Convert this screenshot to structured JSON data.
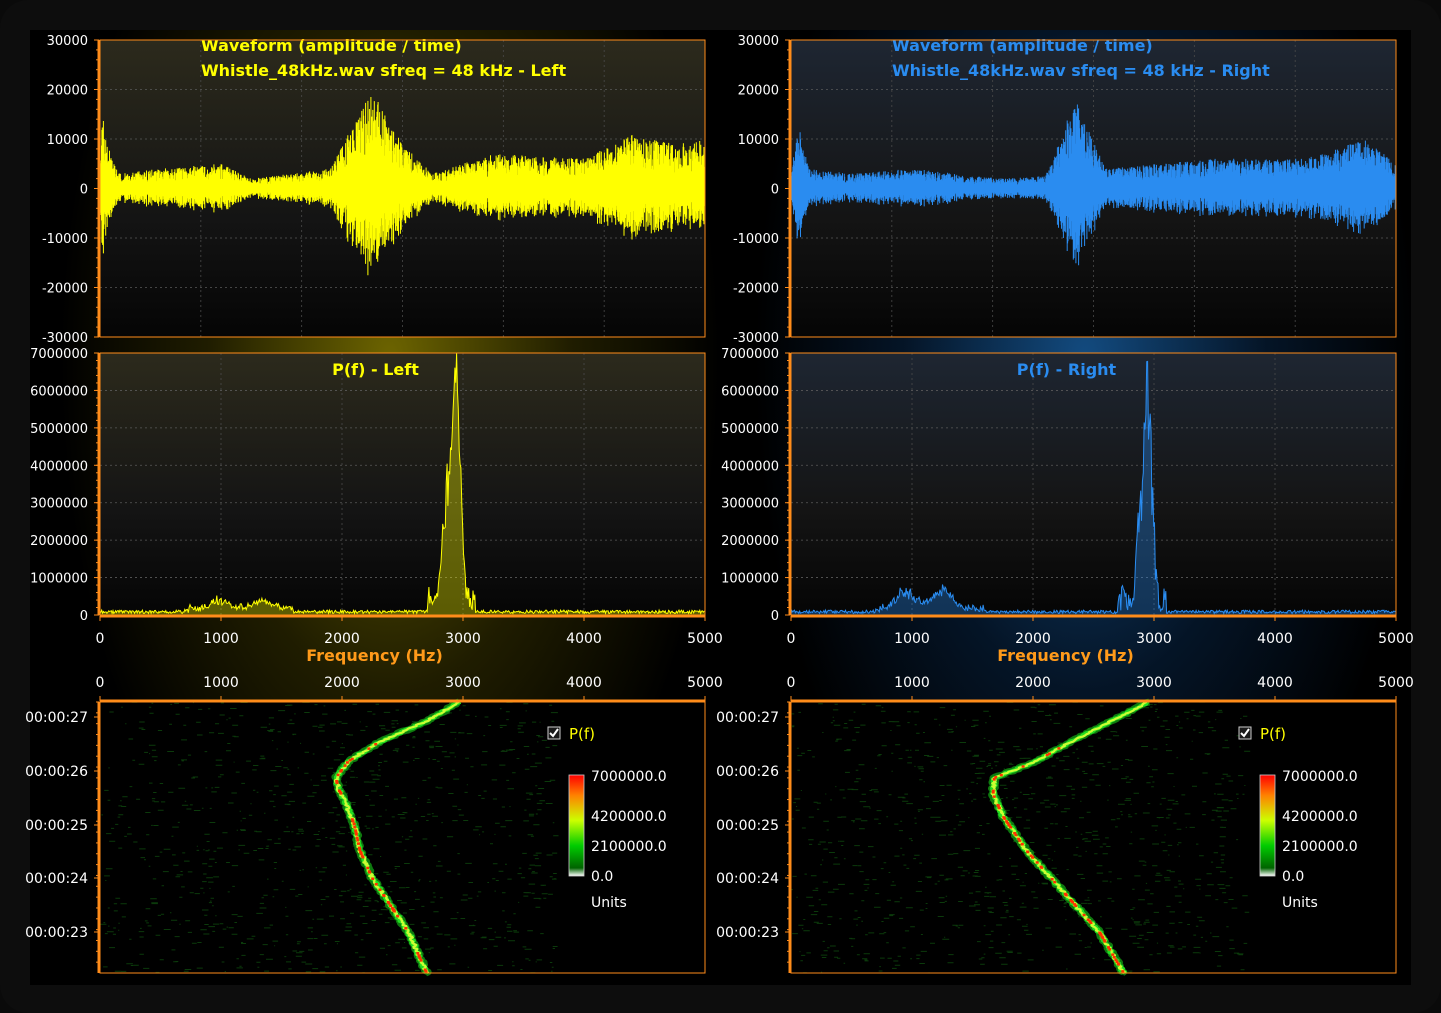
{
  "colors": {
    "left": "#ffff00",
    "right": "#2a8cf0",
    "axis": "#ff8c1a",
    "axisLabel": "#ff9a1a",
    "tick": "#ffffff"
  },
  "chart_data": [
    {
      "id": "wave-left",
      "type": "line",
      "title": "Waveform (amplitude / time)",
      "subtitle": "Whistle_48kHz.wav sfreq = 48 kHz - Left",
      "ylim": [
        -30000,
        30000
      ],
      "yticks": [
        30000,
        20000,
        10000,
        0,
        -10000,
        -20000,
        -30000
      ],
      "yticklabels": [
        "30000",
        "20000",
        "10000",
        "0",
        "-10000",
        "-20000",
        "-30000"
      ],
      "grid": true,
      "color": "#ffff00",
      "envelope": [
        [
          0,
          1000
        ],
        [
          0.004,
          15000
        ],
        [
          0.012,
          9000
        ],
        [
          0.03,
          3000
        ],
        [
          0.1,
          4000
        ],
        [
          0.2,
          5000
        ],
        [
          0.25,
          2000
        ],
        [
          0.38,
          4000
        ],
        [
          0.45,
          20000
        ],
        [
          0.5,
          9000
        ],
        [
          0.55,
          3000
        ],
        [
          0.65,
          7000
        ],
        [
          0.8,
          6000
        ],
        [
          0.88,
          11000
        ],
        [
          0.95,
          9000
        ],
        [
          1,
          10000
        ]
      ]
    },
    {
      "id": "wave-right",
      "type": "line",
      "title": "Waveform (amplitude / time)",
      "subtitle": "Whistle_48kHz.wav sfreq = 48 kHz - Right",
      "ylim": [
        -30000,
        30000
      ],
      "yticks": [
        30000,
        20000,
        10000,
        0,
        -10000,
        -20000,
        -30000
      ],
      "yticklabels": [
        "30000",
        "20000",
        "10000",
        "0",
        "-10000",
        "-20000",
        "-30000"
      ],
      "grid": true,
      "color": "#2a8cf0",
      "envelope": [
        [
          0,
          3000
        ],
        [
          0.012,
          13000
        ],
        [
          0.03,
          4000
        ],
        [
          0.1,
          3000
        ],
        [
          0.2,
          4000
        ],
        [
          0.35,
          2000
        ],
        [
          0.42,
          2500
        ],
        [
          0.47,
          18000
        ],
        [
          0.52,
          4000
        ],
        [
          0.7,
          6000
        ],
        [
          0.85,
          6000
        ],
        [
          0.95,
          10000
        ],
        [
          1,
          5000
        ]
      ]
    },
    {
      "id": "spec-left",
      "type": "line",
      "title": "P(f) - Left",
      "xlabel": "Frequency (Hz)",
      "xlim": [
        0,
        5000
      ],
      "ylim": [
        0,
        7000000
      ],
      "xticks": [
        0,
        1000,
        2000,
        3000,
        4000,
        5000
      ],
      "xticklabels": [
        "0",
        "1000",
        "2000",
        "3000",
        "4000",
        "5000"
      ],
      "yticks": [
        7000000,
        6000000,
        5000000,
        4000000,
        3000000,
        2000000,
        1000000,
        0
      ],
      "yticklabels": [
        "7000000",
        "6000000",
        "5000000",
        "4000000",
        "3000000",
        "2000000",
        "1000000",
        "0"
      ],
      "grid": true,
      "color": "#ffff00",
      "peaks": [
        [
          2870,
          3500000
        ],
        [
          2920,
          5800000
        ],
        [
          2950,
          5300000
        ],
        [
          2980,
          3000000
        ],
        [
          2830,
          1500000
        ],
        [
          1000,
          300000
        ],
        [
          1350,
          250000
        ]
      ]
    },
    {
      "id": "spec-right",
      "type": "line",
      "title": "P(f) - Right",
      "xlabel": "Frequency (Hz)",
      "xlim": [
        0,
        5000
      ],
      "ylim": [
        0,
        7000000
      ],
      "xticks": [
        0,
        1000,
        2000,
        3000,
        4000,
        5000
      ],
      "xticklabels": [
        "0",
        "1000",
        "2000",
        "3000",
        "4000",
        "5000"
      ],
      "yticks": [
        7000000,
        6000000,
        5000000,
        4000000,
        3000000,
        2000000,
        1000000,
        0
      ],
      "yticklabels": [
        "7000000",
        "6000000",
        "5000000",
        "4000000",
        "3000000",
        "2000000",
        "1000000",
        "0"
      ],
      "grid": true,
      "color": "#2a8cf0",
      "peaks": [
        [
          2880,
          3300000
        ],
        [
          2930,
          4800000
        ],
        [
          2960,
          3800000
        ],
        [
          2990,
          2200000
        ],
        [
          950,
          600000
        ],
        [
          1250,
          650000
        ]
      ]
    },
    {
      "id": "sg-left",
      "type": "heatmap",
      "xlim": [
        0,
        5000
      ],
      "xticks": [
        0,
        1000,
        2000,
        3000,
        4000,
        5000
      ],
      "xticklabels": [
        "0",
        "1000",
        "2000",
        "3000",
        "4000",
        "5000"
      ],
      "yticklabels": [
        "00:00:27",
        "00:00:26",
        "00:00:25",
        "00:00:24",
        "00:00:23"
      ],
      "legend": {
        "series": "P(f)",
        "checked": true,
        "max": "7000000.0",
        "mid": "4200000.0",
        "low": "2100000.0",
        "min": "0.0",
        "units": "Units",
        "position": "top-right"
      },
      "track": [
        [
          0.0,
          2970
        ],
        [
          0.07,
          2700
        ],
        [
          0.15,
          2300
        ],
        [
          0.22,
          2050
        ],
        [
          0.28,
          1950
        ],
        [
          0.32,
          1970
        ],
        [
          0.36,
          2020
        ],
        [
          0.45,
          2100
        ],
        [
          0.55,
          2150
        ],
        [
          0.65,
          2250
        ],
        [
          0.75,
          2400
        ],
        [
          0.85,
          2550
        ],
        [
          1.0,
          2700
        ]
      ]
    },
    {
      "id": "sg-right",
      "type": "heatmap",
      "xlim": [
        0,
        5000
      ],
      "xticks": [
        0,
        1000,
        2000,
        3000,
        4000,
        5000
      ],
      "xticklabels": [
        "0",
        "1000",
        "2000",
        "3000",
        "4000",
        "5000"
      ],
      "yticklabels": [
        "00:00:27",
        "00:00:26",
        "00:00:25",
        "00:00:24",
        "00:00:23"
      ],
      "legend": {
        "series": "P(f)",
        "checked": true,
        "max": "7000000.0",
        "mid": "4200000.0",
        "low": "2100000.0",
        "min": "0.0",
        "units": "Units",
        "position": "top-right"
      },
      "track": [
        [
          0.0,
          2950
        ],
        [
          0.07,
          2650
        ],
        [
          0.15,
          2300
        ],
        [
          0.22,
          2020
        ],
        [
          0.28,
          1680
        ],
        [
          0.34,
          1670
        ],
        [
          0.42,
          1750
        ],
        [
          0.55,
          1950
        ],
        [
          0.65,
          2150
        ],
        [
          0.75,
          2350
        ],
        [
          0.85,
          2550
        ],
        [
          1.0,
          2750
        ]
      ]
    }
  ]
}
